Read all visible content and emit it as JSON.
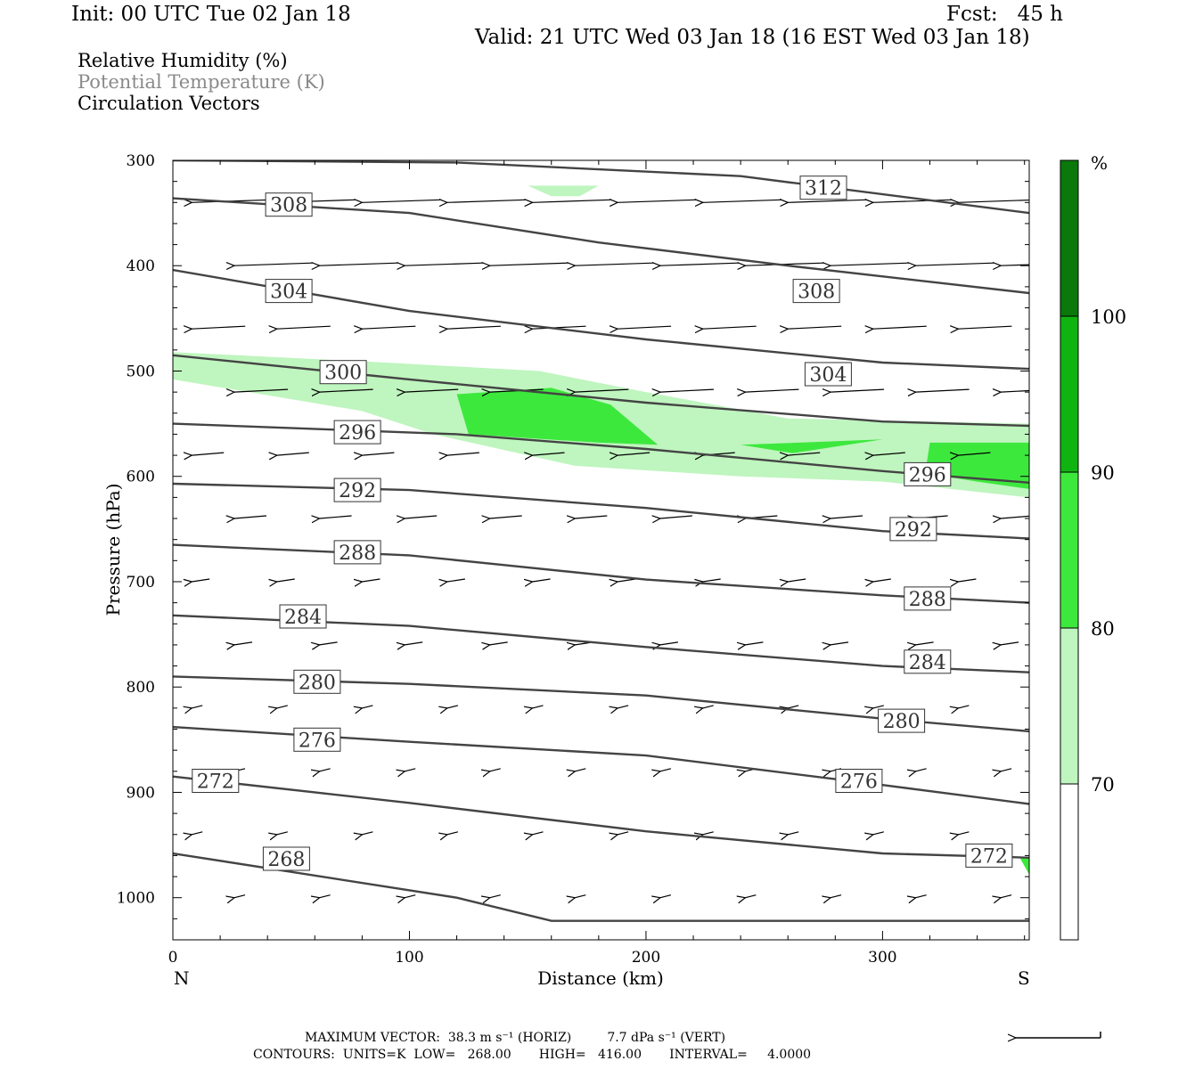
{
  "header": {
    "init": "Init: 00 UTC Tue 02 Jan 18",
    "fcst": "Fcst:   45 h",
    "valid": "Valid: 21 UTC Wed 03 Jan 18 (16 EST Wed 03 Jan 18)"
  },
  "legend": {
    "line1": "Relative Humidity (%)",
    "line2": "Potential Temperature (K)",
    "line3": "Circulation Vectors",
    "line2_color": "#8a8a8a"
  },
  "footer": {
    "max_vector": "MAXIMUM VECTOR:  38.3 m s⁻¹ (HORIZ)         7.7 dPa s⁻¹ (VERT)",
    "contours": "CONTOURS:  UNITS=K  LOW=   268.00       HIGH=   416.00       INTERVAL=     4.0000"
  },
  "colors": {
    "rh70": "#bff5bf",
    "rh80": "#3de83d",
    "rh90": "#10b410",
    "rh100": "#0a780a",
    "theta_line": "#444444"
  },
  "chart_data": {
    "type": "cross-section",
    "xlabel": "Distance (km)",
    "ylabel": "Pressure (hPa)",
    "x_ticks": [
      0,
      100,
      200,
      300
    ],
    "y_ticks": [
      300,
      400,
      500,
      600,
      700,
      800,
      900,
      1000
    ],
    "xlim": [
      0,
      362
    ],
    "ylim": [
      1040,
      300
    ],
    "left_end_label": "N",
    "right_end_label": "S",
    "colorbar": {
      "unit": "%",
      "levels": [
        70,
        80,
        90,
        100
      ]
    },
    "theta_contours": [
      {
        "value": 312,
        "points": [
          [
            0,
            300
          ],
          [
            120,
            302
          ],
          [
            240,
            315
          ],
          [
            362,
            350
          ]
        ],
        "labels": [
          [
            275,
            326
          ]
        ]
      },
      {
        "value": 308,
        "points": [
          [
            0,
            336
          ],
          [
            100,
            350
          ],
          [
            180,
            378
          ],
          [
            260,
            400
          ],
          [
            362,
            426
          ]
        ],
        "labels": [
          [
            49,
            342
          ],
          [
            272,
            424
          ]
        ]
      },
      {
        "value": 304,
        "points": [
          [
            0,
            404
          ],
          [
            100,
            443
          ],
          [
            200,
            470
          ],
          [
            300,
            492
          ],
          [
            362,
            498
          ]
        ],
        "labels": [
          [
            49,
            424
          ],
          [
            277,
            503
          ]
        ]
      },
      {
        "value": 300,
        "points": [
          [
            0,
            485
          ],
          [
            100,
            508
          ],
          [
            200,
            530
          ],
          [
            300,
            548
          ],
          [
            362,
            552
          ]
        ],
        "labels": [
          [
            72,
            501
          ]
        ]
      },
      {
        "value": 296,
        "points": [
          [
            0,
            550
          ],
          [
            120,
            560
          ],
          [
            200,
            574
          ],
          [
            300,
            595
          ],
          [
            362,
            606
          ]
        ],
        "labels": [
          [
            78,
            558
          ],
          [
            319,
            598
          ]
        ]
      },
      {
        "value": 292,
        "points": [
          [
            0,
            607
          ],
          [
            100,
            613
          ],
          [
            200,
            630
          ],
          [
            300,
            652
          ],
          [
            362,
            659
          ]
        ],
        "labels": [
          [
            78,
            613
          ],
          [
            313,
            650
          ]
        ]
      },
      {
        "value": 288,
        "points": [
          [
            0,
            665
          ],
          [
            100,
            675
          ],
          [
            200,
            698
          ],
          [
            300,
            713
          ],
          [
            362,
            720
          ]
        ],
        "labels": [
          [
            78,
            672
          ],
          [
            319,
            716
          ]
        ]
      },
      {
        "value": 284,
        "points": [
          [
            0,
            732
          ],
          [
            100,
            742
          ],
          [
            200,
            762
          ],
          [
            300,
            780
          ],
          [
            362,
            786
          ]
        ],
        "labels": [
          [
            55,
            733
          ],
          [
            319,
            776
          ]
        ]
      },
      {
        "value": 280,
        "points": [
          [
            0,
            790
          ],
          [
            100,
            797
          ],
          [
            200,
            808
          ],
          [
            300,
            830
          ],
          [
            362,
            842
          ]
        ],
        "labels": [
          [
            61,
            795
          ],
          [
            308,
            832
          ]
        ]
      },
      {
        "value": 276,
        "points": [
          [
            0,
            838
          ],
          [
            100,
            852
          ],
          [
            200,
            865
          ],
          [
            300,
            893
          ],
          [
            362,
            911
          ]
        ],
        "labels": [
          [
            61,
            850
          ],
          [
            290,
            889
          ]
        ]
      },
      {
        "value": 272,
        "points": [
          [
            0,
            885
          ],
          [
            100,
            910
          ],
          [
            200,
            937
          ],
          [
            300,
            958
          ],
          [
            362,
            962
          ]
        ],
        "labels": [
          [
            18,
            889
          ],
          [
            345,
            960
          ]
        ]
      },
      {
        "value": 268,
        "points": [
          [
            0,
            958
          ],
          [
            120,
            1000
          ],
          [
            160,
            1022
          ],
          [
            362,
            1022
          ]
        ],
        "labels": [
          [
            48,
            963
          ]
        ]
      }
    ],
    "rh_regions": [
      {
        "level": 70,
        "points": [
          [
            0,
            482
          ],
          [
            90,
            492
          ],
          [
            155,
            500
          ],
          [
            200,
            520
          ],
          [
            260,
            545
          ],
          [
            362,
            550
          ],
          [
            362,
            620
          ],
          [
            300,
            605
          ],
          [
            240,
            600
          ],
          [
            170,
            590
          ],
          [
            110,
            560
          ],
          [
            80,
            538
          ],
          [
            0,
            508
          ]
        ]
      },
      {
        "level": 70,
        "points": [
          [
            150,
            324
          ],
          [
            180,
            324
          ],
          [
            172,
            334
          ],
          [
            160,
            334
          ]
        ]
      },
      {
        "level": 80,
        "points": [
          [
            120,
            522
          ],
          [
            160,
            516
          ],
          [
            185,
            532
          ],
          [
            205,
            570
          ],
          [
            180,
            568
          ],
          [
            125,
            560
          ]
        ]
      },
      {
        "level": 80,
        "points": [
          [
            240,
            570
          ],
          [
            300,
            565
          ],
          [
            262,
            578
          ]
        ]
      },
      {
        "level": 80,
        "points": [
          [
            320,
            568
          ],
          [
            362,
            568
          ],
          [
            362,
            612
          ],
          [
            340,
            605
          ],
          [
            318,
            597
          ]
        ]
      },
      {
        "level": 80,
        "points": [
          [
            358,
            962
          ],
          [
            362,
            962
          ],
          [
            362,
            978
          ]
        ]
      }
    ],
    "max_vector": {
      "horiz_m_s": 38.3,
      "vert_dPa_s": 7.7
    }
  }
}
